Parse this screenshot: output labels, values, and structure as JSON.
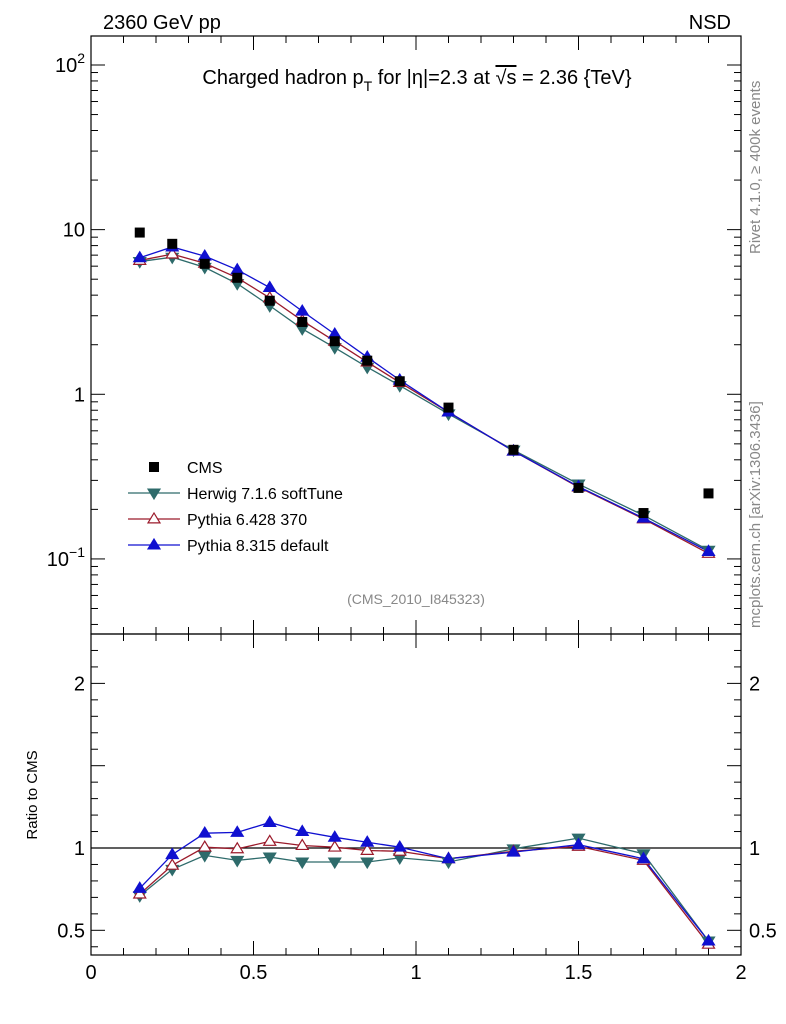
{
  "chart_data": {
    "type": "line",
    "header_left": "2360 GeV pp",
    "header_right": "NSD",
    "title": "Charged hadron p_T for |η|=2.3 at √s = 2.36 {TeV}",
    "title_parts": {
      "pre": "Charged hadron p",
      "sub": "T",
      "mid": " for |η|=2.3 at ",
      "root": "√s",
      "post": " = 2.36 {TeV}"
    },
    "analysis_label": "(CMS_2010_I845323)",
    "side_label_top": "Rivet 4.1.0, ≥ 400k events",
    "side_label_bottom": "mcplots.cern.ch [arXiv:1306.3436]",
    "ratio_ylabel": "Ratio to CMS",
    "xlim": [
      0,
      2
    ],
    "ylim_main": [
      0.035,
      150
    ],
    "ylim_ratio": [
      0.35,
      2.3
    ],
    "main_yticks": [
      {
        "v": 100,
        "base": "10",
        "exp": "2"
      },
      {
        "v": 10,
        "base": "10",
        "exp": ""
      },
      {
        "v": 1,
        "base": "1",
        "exp": ""
      },
      {
        "v": 0.1,
        "base": "10",
        "exp": "−1"
      }
    ],
    "ratio_yticks": [
      {
        "v": 0.5,
        "label": "0.5"
      },
      {
        "v": 1,
        "label": "1"
      },
      {
        "v": 2,
        "label": "2"
      }
    ],
    "xticks": [
      {
        "v": 0,
        "label": "0"
      },
      {
        "v": 0.5,
        "label": "0.5"
      },
      {
        "v": 1,
        "label": "1"
      },
      {
        "v": 1.5,
        "label": "1.5"
      },
      {
        "v": 2,
        "label": "2"
      }
    ],
    "x": [
      0.15,
      0.25,
      0.35,
      0.45,
      0.55,
      0.65,
      0.75,
      0.85,
      0.95,
      1.1,
      1.3,
      1.5,
      1.7,
      1.9
    ],
    "data": {
      "name": "CMS",
      "values": [
        9.6,
        8.2,
        6.2,
        5.1,
        3.7,
        2.75,
        2.1,
        1.6,
        1.2,
        0.83,
        0.46,
        0.27,
        0.19,
        0.25
      ]
    },
    "series": [
      {
        "name": "Herwig 7.1.6 softTune",
        "color": "#2e6b6b",
        "marker": "tri-down-filled",
        "values": [
          6.4,
          6.8,
          5.9,
          4.7,
          3.45,
          2.5,
          1.92,
          1.46,
          1.13,
          0.76,
          0.458,
          0.285,
          0.184,
          0.113
        ],
        "ratio": [
          0.71,
          0.87,
          0.955,
          0.925,
          0.945,
          0.915,
          0.915,
          0.915,
          0.94,
          0.915,
          0.995,
          1.06,
          0.965,
          0.435
        ]
      },
      {
        "name": "Pythia 6.428 370",
        "color": "#9b1b2b",
        "marker": "tri-up-open",
        "values": [
          6.5,
          7.1,
          6.25,
          5.1,
          3.85,
          2.8,
          2.1,
          1.57,
          1.18,
          0.78,
          0.452,
          0.273,
          0.175,
          0.108
        ],
        "ratio": [
          0.72,
          0.895,
          1.005,
          0.995,
          1.04,
          1.015,
          1.005,
          0.985,
          0.98,
          0.935,
          0.98,
          1.01,
          0.925,
          0.415
        ]
      },
      {
        "name": "Pythia 8.315 default",
        "color": "#1010d0",
        "marker": "tri-up-filled",
        "values": [
          6.75,
          7.85,
          6.9,
          5.7,
          4.45,
          3.2,
          2.32,
          1.68,
          1.22,
          0.78,
          0.452,
          0.275,
          0.177,
          0.111
        ],
        "ratio": [
          0.755,
          0.96,
          1.09,
          1.095,
          1.155,
          1.1,
          1.065,
          1.035,
          1.005,
          0.935,
          0.975,
          1.02,
          0.935,
          0.435
        ]
      }
    ]
  }
}
